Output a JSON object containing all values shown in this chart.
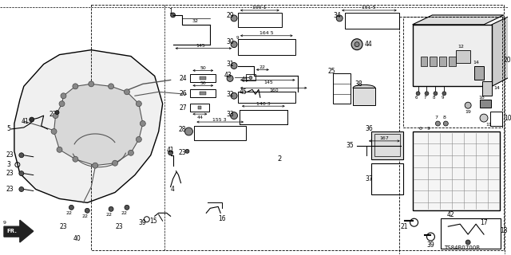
{
  "bg_color": "#ffffff",
  "line_color": "#000000",
  "text_color": "#000000",
  "diagram_ref": "TS84B0700B",
  "fig_width": 6.4,
  "fig_height": 3.2,
  "dpi": 100
}
